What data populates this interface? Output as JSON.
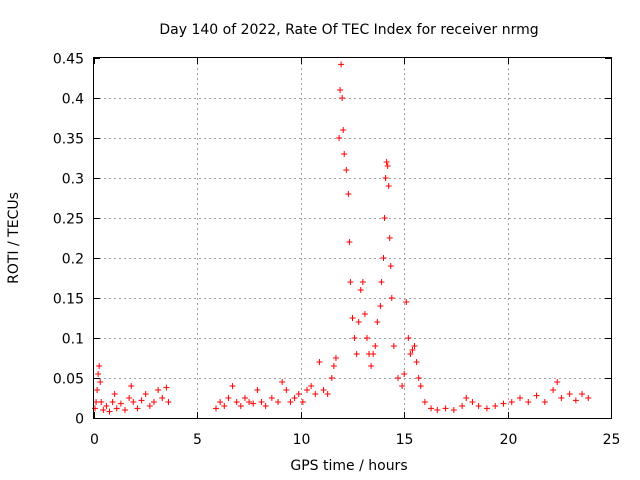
{
  "chart_data": {
    "type": "scatter",
    "title": "Day 140 of 2022, Rate Of TEC Index for receiver nrmg",
    "xlabel": "GPS time / hours",
    "ylabel": "ROTI / TECUs",
    "xlim": [
      0,
      25
    ],
    "ylim": [
      0,
      0.45
    ],
    "xticks": [
      0,
      5,
      10,
      15,
      20,
      25
    ],
    "xtick_labels": [
      "0",
      "5",
      "10",
      "15",
      "20",
      "25"
    ],
    "yticks": [
      0,
      0.05,
      0.1,
      0.15,
      0.2,
      0.25,
      0.3,
      0.35,
      0.4,
      0.45
    ],
    "ytick_labels": [
      "0",
      "0.05",
      "0.1",
      "0.15",
      "0.2",
      "0.25",
      "0.3",
      "0.35",
      "0.4",
      "0.45"
    ],
    "grid": true,
    "marker": "+",
    "marker_color": "#ff0000",
    "series": [
      {
        "name": "ROTI",
        "points": [
          [
            0.05,
            0.012
          ],
          [
            0.1,
            0.02
          ],
          [
            0.15,
            0.035
          ],
          [
            0.2,
            0.055
          ],
          [
            0.25,
            0.065
          ],
          [
            0.3,
            0.045
          ],
          [
            0.35,
            0.02
          ],
          [
            0.45,
            0.01
          ],
          [
            0.6,
            0.015
          ],
          [
            0.75,
            0.008
          ],
          [
            0.9,
            0.02
          ],
          [
            1.0,
            0.03
          ],
          [
            1.1,
            0.012
          ],
          [
            1.3,
            0.018
          ],
          [
            1.5,
            0.01
          ],
          [
            1.7,
            0.025
          ],
          [
            1.8,
            0.04
          ],
          [
            1.9,
            0.02
          ],
          [
            2.1,
            0.012
          ],
          [
            2.3,
            0.022
          ],
          [
            2.5,
            0.03
          ],
          [
            2.7,
            0.015
          ],
          [
            2.9,
            0.02
          ],
          [
            3.1,
            0.035
          ],
          [
            3.3,
            0.025
          ],
          [
            3.5,
            0.038
          ],
          [
            3.6,
            0.02
          ],
          [
            5.9,
            0.012
          ],
          [
            6.1,
            0.02
          ],
          [
            6.3,
            0.015
          ],
          [
            6.5,
            0.025
          ],
          [
            6.7,
            0.04
          ],
          [
            6.9,
            0.02
          ],
          [
            7.1,
            0.015
          ],
          [
            7.3,
            0.025
          ],
          [
            7.5,
            0.02
          ],
          [
            7.7,
            0.018
          ],
          [
            7.9,
            0.035
          ],
          [
            8.1,
            0.02
          ],
          [
            8.3,
            0.015
          ],
          [
            8.6,
            0.025
          ],
          [
            8.9,
            0.02
          ],
          [
            9.1,
            0.045
          ],
          [
            9.3,
            0.035
          ],
          [
            9.5,
            0.02
          ],
          [
            9.7,
            0.025
          ],
          [
            9.9,
            0.03
          ],
          [
            10.1,
            0.02
          ],
          [
            10.3,
            0.035
          ],
          [
            10.5,
            0.04
          ],
          [
            10.7,
            0.03
          ],
          [
            10.9,
            0.07
          ],
          [
            11.1,
            0.035
          ],
          [
            11.3,
            0.03
          ],
          [
            11.5,
            0.05
          ],
          [
            11.6,
            0.065
          ],
          [
            11.7,
            0.075
          ],
          [
            11.85,
            0.35
          ],
          [
            11.9,
            0.41
          ],
          [
            11.95,
            0.442
          ],
          [
            12.0,
            0.4
          ],
          [
            12.05,
            0.36
          ],
          [
            12.1,
            0.33
          ],
          [
            12.2,
            0.31
          ],
          [
            12.3,
            0.28
          ],
          [
            12.35,
            0.22
          ],
          [
            12.4,
            0.17
          ],
          [
            12.5,
            0.125
          ],
          [
            12.6,
            0.1
          ],
          [
            12.7,
            0.08
          ],
          [
            12.8,
            0.12
          ],
          [
            12.9,
            0.16
          ],
          [
            13.0,
            0.17
          ],
          [
            13.1,
            0.13
          ],
          [
            13.2,
            0.1
          ],
          [
            13.3,
            0.08
          ],
          [
            13.4,
            0.065
          ],
          [
            13.5,
            0.08
          ],
          [
            13.6,
            0.09
          ],
          [
            13.7,
            0.12
          ],
          [
            13.85,
            0.14
          ],
          [
            13.9,
            0.17
          ],
          [
            14.0,
            0.2
          ],
          [
            14.05,
            0.25
          ],
          [
            14.1,
            0.3
          ],
          [
            14.15,
            0.32
          ],
          [
            14.2,
            0.315
          ],
          [
            14.25,
            0.29
          ],
          [
            14.3,
            0.225
          ],
          [
            14.35,
            0.19
          ],
          [
            14.4,
            0.15
          ],
          [
            14.5,
            0.09
          ],
          [
            14.7,
            0.05
          ],
          [
            14.9,
            0.04
          ],
          [
            15.0,
            0.055
          ],
          [
            15.1,
            0.145
          ],
          [
            15.2,
            0.1
          ],
          [
            15.3,
            0.08
          ],
          [
            15.4,
            0.085
          ],
          [
            15.5,
            0.09
          ],
          [
            15.6,
            0.07
          ],
          [
            15.7,
            0.05
          ],
          [
            15.8,
            0.04
          ],
          [
            16.0,
            0.02
          ],
          [
            16.3,
            0.012
          ],
          [
            16.6,
            0.01
          ],
          [
            17.0,
            0.012
          ],
          [
            17.4,
            0.01
          ],
          [
            17.8,
            0.015
          ],
          [
            18.0,
            0.025
          ],
          [
            18.3,
            0.02
          ],
          [
            18.6,
            0.015
          ],
          [
            19.0,
            0.012
          ],
          [
            19.4,
            0.015
          ],
          [
            19.8,
            0.018
          ],
          [
            20.2,
            0.02
          ],
          [
            20.6,
            0.025
          ],
          [
            21.0,
            0.02
          ],
          [
            21.4,
            0.028
          ],
          [
            21.8,
            0.02
          ],
          [
            22.2,
            0.035
          ],
          [
            22.4,
            0.045
          ],
          [
            22.6,
            0.025
          ],
          [
            23.0,
            0.03
          ],
          [
            23.3,
            0.022
          ],
          [
            23.6,
            0.03
          ],
          [
            23.9,
            0.025
          ]
        ]
      }
    ]
  }
}
